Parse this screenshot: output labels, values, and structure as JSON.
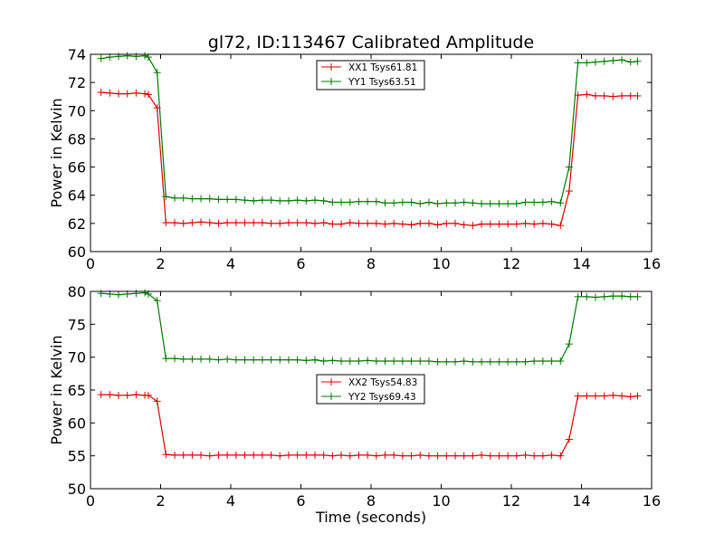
{
  "title": "gl72, ID:113467 Calibrated Amplitude",
  "colors": {
    "xx": "#dd0000",
    "yy": "#007700",
    "axes": "#000000",
    "background": "#ffffff"
  },
  "chart_data": [
    {
      "type": "line",
      "title": "gl72, ID:113467 Calibrated Amplitude",
      "xlabel": "",
      "ylabel": "Power in Kelvin",
      "xlim": [
        0,
        16
      ],
      "ylim": [
        60,
        74
      ],
      "xticks": [
        0,
        2,
        4,
        6,
        8,
        10,
        12,
        14,
        16
      ],
      "yticks": [
        60,
        62,
        64,
        66,
        68,
        70,
        72,
        74
      ],
      "grid": false,
      "legend_position": "top-center",
      "marker": "plus",
      "x": [
        0.3,
        0.55,
        0.8,
        1.05,
        1.3,
        1.55,
        1.65,
        1.9,
        2.15,
        2.4,
        2.65,
        2.9,
        3.15,
        3.4,
        3.65,
        3.9,
        4.15,
        4.4,
        4.65,
        4.9,
        5.15,
        5.4,
        5.65,
        5.9,
        6.15,
        6.4,
        6.65,
        6.9,
        7.15,
        7.4,
        7.65,
        7.9,
        8.15,
        8.4,
        8.65,
        8.9,
        9.15,
        9.4,
        9.65,
        9.9,
        10.15,
        10.4,
        10.65,
        10.9,
        11.15,
        11.4,
        11.65,
        11.9,
        12.15,
        12.4,
        12.65,
        12.9,
        13.15,
        13.4,
        13.65,
        13.9,
        14.15,
        14.4,
        14.65,
        14.9,
        15.15,
        15.4,
        15.6
      ],
      "series": [
        {
          "name": "XX1 Tsys61.81",
          "color": "#dd0000",
          "values": [
            71.3,
            71.25,
            71.2,
            71.2,
            71.25,
            71.2,
            71.15,
            70.2,
            62.05,
            62.05,
            62.0,
            62.05,
            62.1,
            62.05,
            62.0,
            62.05,
            62.05,
            62.05,
            62.05,
            62.05,
            62.0,
            62.0,
            62.05,
            62.05,
            62.05,
            62.0,
            62.05,
            61.95,
            61.95,
            62.05,
            62.0,
            62.0,
            62.0,
            61.95,
            62.0,
            61.95,
            61.9,
            62.0,
            62.0,
            61.9,
            62.0,
            62.0,
            61.9,
            61.85,
            61.95,
            61.95,
            61.95,
            61.95,
            61.95,
            62.0,
            61.95,
            62.0,
            61.95,
            61.85,
            64.3,
            71.1,
            71.15,
            71.05,
            71.05,
            71.0,
            71.05,
            71.05,
            71.05
          ]
        },
        {
          "name": "YY1 Tsys63.51",
          "color": "#007700",
          "values": [
            73.7,
            73.8,
            73.85,
            73.9,
            73.85,
            73.9,
            73.8,
            72.7,
            63.9,
            63.8,
            63.8,
            63.75,
            63.75,
            63.75,
            63.7,
            63.7,
            63.7,
            63.65,
            63.6,
            63.65,
            63.65,
            63.6,
            63.6,
            63.65,
            63.6,
            63.65,
            63.6,
            63.5,
            63.5,
            63.5,
            63.55,
            63.55,
            63.55,
            63.45,
            63.45,
            63.5,
            63.5,
            63.4,
            63.5,
            63.4,
            63.45,
            63.45,
            63.5,
            63.45,
            63.4,
            63.4,
            63.4,
            63.4,
            63.4,
            63.5,
            63.5,
            63.5,
            63.55,
            63.45,
            66.0,
            73.4,
            73.4,
            73.45,
            73.5,
            73.55,
            73.6,
            73.45,
            73.5
          ]
        }
      ]
    },
    {
      "type": "line",
      "title": "",
      "xlabel": "Time (seconds)",
      "ylabel": "Power in Kelvin",
      "xlim": [
        0,
        16
      ],
      "ylim": [
        50,
        80
      ],
      "xticks": [
        0,
        2,
        4,
        6,
        8,
        10,
        12,
        14,
        16
      ],
      "yticks": [
        50,
        55,
        60,
        65,
        70,
        75,
        80
      ],
      "grid": false,
      "legend_position": "center",
      "marker": "plus",
      "x": [
        0.3,
        0.55,
        0.8,
        1.05,
        1.3,
        1.55,
        1.65,
        1.9,
        2.15,
        2.4,
        2.65,
        2.9,
        3.15,
        3.4,
        3.65,
        3.9,
        4.15,
        4.4,
        4.65,
        4.9,
        5.15,
        5.4,
        5.65,
        5.9,
        6.15,
        6.4,
        6.65,
        6.9,
        7.15,
        7.4,
        7.65,
        7.9,
        8.15,
        8.4,
        8.65,
        8.9,
        9.15,
        9.4,
        9.65,
        9.9,
        10.15,
        10.4,
        10.65,
        10.9,
        11.15,
        11.4,
        11.65,
        11.9,
        12.15,
        12.4,
        12.65,
        12.9,
        13.15,
        13.4,
        13.65,
        13.9,
        14.15,
        14.4,
        14.65,
        14.9,
        15.15,
        15.4,
        15.6
      ],
      "series": [
        {
          "name": "XX2 Tsys54.83",
          "color": "#dd0000",
          "values": [
            64.3,
            64.3,
            64.2,
            64.2,
            64.3,
            64.2,
            64.2,
            63.3,
            55.2,
            55.1,
            55.1,
            55.1,
            55.1,
            55.0,
            55.1,
            55.1,
            55.1,
            55.1,
            55.1,
            55.1,
            55.1,
            55.0,
            55.1,
            55.1,
            55.1,
            55.1,
            55.1,
            55.0,
            55.1,
            55.0,
            55.1,
            55.1,
            55.0,
            55.1,
            55.1,
            55.0,
            55.0,
            55.1,
            55.0,
            55.0,
            55.0,
            55.0,
            55.0,
            55.0,
            55.1,
            55.0,
            55.0,
            55.0,
            55.0,
            55.1,
            55.0,
            55.0,
            55.1,
            55.0,
            57.5,
            64.1,
            64.1,
            64.1,
            64.1,
            64.2,
            64.1,
            64.0,
            64.1
          ]
        },
        {
          "name": "YY2 Tsys69.43",
          "color": "#007700",
          "values": [
            79.7,
            79.6,
            79.5,
            79.6,
            79.7,
            79.8,
            79.6,
            78.6,
            69.8,
            69.8,
            69.7,
            69.7,
            69.7,
            69.7,
            69.6,
            69.7,
            69.6,
            69.6,
            69.6,
            69.6,
            69.6,
            69.6,
            69.6,
            69.6,
            69.5,
            69.6,
            69.4,
            69.5,
            69.4,
            69.4,
            69.4,
            69.5,
            69.4,
            69.4,
            69.4,
            69.4,
            69.4,
            69.4,
            69.4,
            69.3,
            69.3,
            69.3,
            69.4,
            69.3,
            69.3,
            69.3,
            69.3,
            69.3,
            69.3,
            69.3,
            69.4,
            69.4,
            69.4,
            69.4,
            72.0,
            79.2,
            79.2,
            79.1,
            79.2,
            79.3,
            79.3,
            79.2,
            79.2
          ]
        }
      ]
    }
  ]
}
